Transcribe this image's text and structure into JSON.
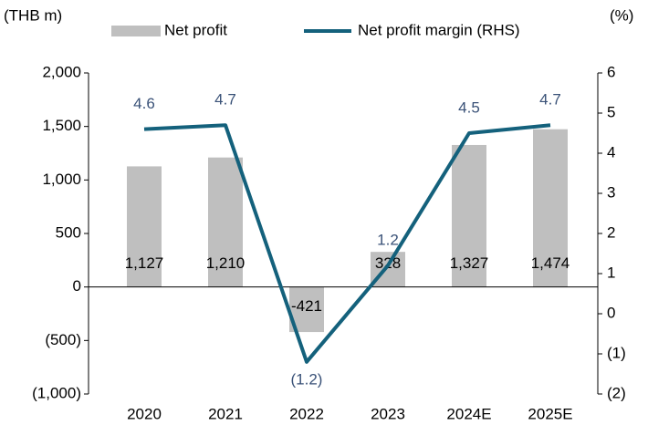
{
  "chart_data": {
    "type": "bar_line",
    "y_label": "(THB m)",
    "y2_label": "(%)",
    "categories": [
      "2020",
      "2021",
      "2022",
      "2023",
      "2024E",
      "2025E"
    ],
    "series": [
      {
        "name": "Net profit",
        "type": "bar",
        "color": "#bfbfbf",
        "values": [
          1127,
          1210,
          -421,
          328,
          1327,
          1474
        ],
        "value_labels": [
          "1,127",
          "1,210",
          "-421",
          "328",
          "1,327",
          "1,474"
        ]
      },
      {
        "name": "Net profit margin (RHS)",
        "type": "line",
        "axis": "y2",
        "color": "#14617c",
        "values": [
          4.6,
          4.7,
          -1.2,
          1.2,
          4.5,
          4.7
        ],
        "value_labels": [
          "4.6",
          "4.7",
          "(1.2)",
          "1.2",
          "4.5",
          "4.7"
        ]
      }
    ],
    "ylim": [
      -1000,
      2000
    ],
    "yticks": [
      {
        "value": -1000,
        "label": "(1,000)"
      },
      {
        "value": -500,
        "label": "(500)"
      },
      0,
      500,
      {
        "value": 1000,
        "label": "1,000"
      },
      {
        "value": 1500,
        "label": "1,500"
      },
      {
        "value": 2000,
        "label": "2,000"
      }
    ],
    "y2lim": [
      -2,
      6
    ],
    "y2ticks": [
      {
        "value": -2,
        "label": "(2)"
      },
      {
        "value": -1,
        "label": "(1)"
      },
      0,
      1,
      2,
      3,
      4,
      5,
      6
    ],
    "legend": "top"
  }
}
